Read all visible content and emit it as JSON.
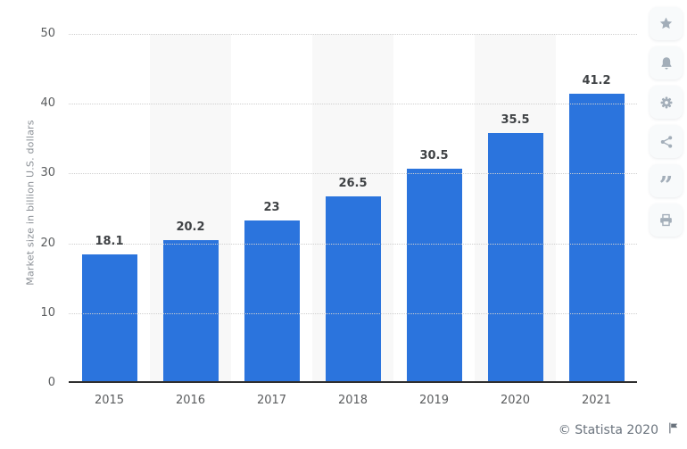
{
  "chart_data": {
    "type": "bar",
    "categories": [
      "2015",
      "2016",
      "2017",
      "2018",
      "2019",
      "2020",
      "2021"
    ],
    "values": [
      18.1,
      20.2,
      23,
      26.5,
      30.5,
      35.5,
      41.2
    ],
    "value_labels": [
      "18.1",
      "20.2",
      "23",
      "26.5",
      "30.5",
      "35.5",
      "41.2"
    ],
    "title": "",
    "xlabel": "",
    "ylabel": "Market size in billion U.S. dollars",
    "ylim": [
      0,
      50
    ],
    "yticks": [
      0,
      10,
      20,
      30,
      40,
      50
    ],
    "grid": "horizontal-dotted",
    "legend": "none",
    "colors": {
      "bar": "#2b74dd",
      "stripe": "#f8f8f8",
      "gridline": "#cfcfcf",
      "axis_line": "#2f2f2f",
      "value_label": "#3f4245",
      "tick_label": "#5a5c5e"
    }
  },
  "toolbar": {
    "buttons": [
      {
        "name": "favorite",
        "icon": "star-icon"
      },
      {
        "name": "notifications",
        "icon": "bell-icon"
      },
      {
        "name": "settings",
        "icon": "gear-icon"
      },
      {
        "name": "share",
        "icon": "share-icon"
      },
      {
        "name": "cite",
        "icon": "quote-icon"
      },
      {
        "name": "print",
        "icon": "printer-icon"
      }
    ],
    "icon_color": "#a3aeb9"
  },
  "footer": {
    "copyright": "© Statista 2020",
    "flag_icon": "flag-icon"
  }
}
